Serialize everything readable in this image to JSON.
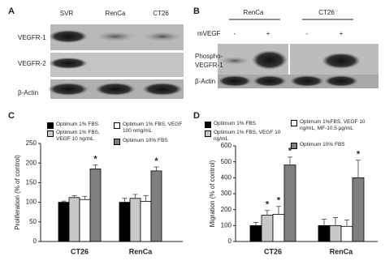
{
  "blots": {
    "a": {
      "label": "A",
      "lanes": [
        "SVR",
        "RenCa",
        "CT26"
      ],
      "rows": [
        "VEGFR-1",
        "VEGFR-2",
        "β-Actin"
      ]
    },
    "b": {
      "label": "B",
      "groups": [
        "RenCa",
        "CT26"
      ],
      "treatment": "mVEGF",
      "conditions": [
        "-",
        "+",
        "-",
        "+"
      ],
      "rows": [
        [
          "Phospho-",
          "VEGFR-1"
        ],
        "β-Actin"
      ]
    }
  },
  "chart_data": [
    {
      "type": "bar",
      "panel": "C",
      "y_label": "Proliferation (% of control)",
      "categories": [
        "CT26",
        "RenCa"
      ],
      "ylim": [
        0,
        250
      ],
      "yticks": [
        0,
        50,
        100,
        150,
        200,
        250
      ],
      "series": [
        {
          "name": "Optimum 1% FBS",
          "color": "#000000",
          "values": [
            100,
            100
          ],
          "errors": [
            3,
            10
          ],
          "significance": [
            null,
            null
          ]
        },
        {
          "name": "Optimum 1% FBS, VEGF 10 ng/mL",
          "color": "#c8c8c8",
          "values": [
            112,
            110
          ],
          "errors": [
            5,
            10
          ],
          "significance": [
            null,
            null
          ]
        },
        {
          "name": "Optimum 1% FBS, VEGF 100 nmg/mL",
          "color": "#ffffff",
          "values": [
            107,
            102
          ],
          "errors": [
            8,
            15
          ],
          "significance": [
            null,
            null
          ]
        },
        {
          "name": "Optimum 10% FBS",
          "color": "#7f7f7f",
          "values": [
            185,
            180
          ],
          "errors": [
            10,
            10
          ],
          "significance": [
            "*",
            "*"
          ]
        }
      ]
    },
    {
      "type": "bar",
      "panel": "D",
      "y_label": "Migration (% of control)",
      "categories": [
        "CT26",
        "RenCa"
      ],
      "ylim": [
        0,
        600
      ],
      "yticks": [
        0,
        100,
        200,
        300,
        400,
        500,
        600
      ],
      "series": [
        {
          "name": "Optimum 1% FBS",
          "color": "#000000",
          "values": [
            100,
            100
          ],
          "errors": [
            20,
            40
          ],
          "significance": [
            null,
            null
          ]
        },
        {
          "name": "Optimum 1% FBS, VEGF 10 ng/mL",
          "color": "#c8c8c8",
          "values": [
            165,
            100
          ],
          "errors": [
            30,
            50
          ],
          "significance": [
            "*",
            null
          ]
        },
        {
          "name": "Optimum 1%FBS, VEGF 10 ng/mL, MF-10.5 µg/mL",
          "color": "#ffffff",
          "values": [
            170,
            95
          ],
          "errors": [
            50,
            40
          ],
          "significance": [
            "*",
            null
          ]
        },
        {
          "name": "Optimum 10% FBS",
          "color": "#7f7f7f",
          "values": [
            480,
            400
          ],
          "errors": [
            50,
            110
          ],
          "significance": [
            "*",
            "*"
          ]
        }
      ]
    }
  ]
}
